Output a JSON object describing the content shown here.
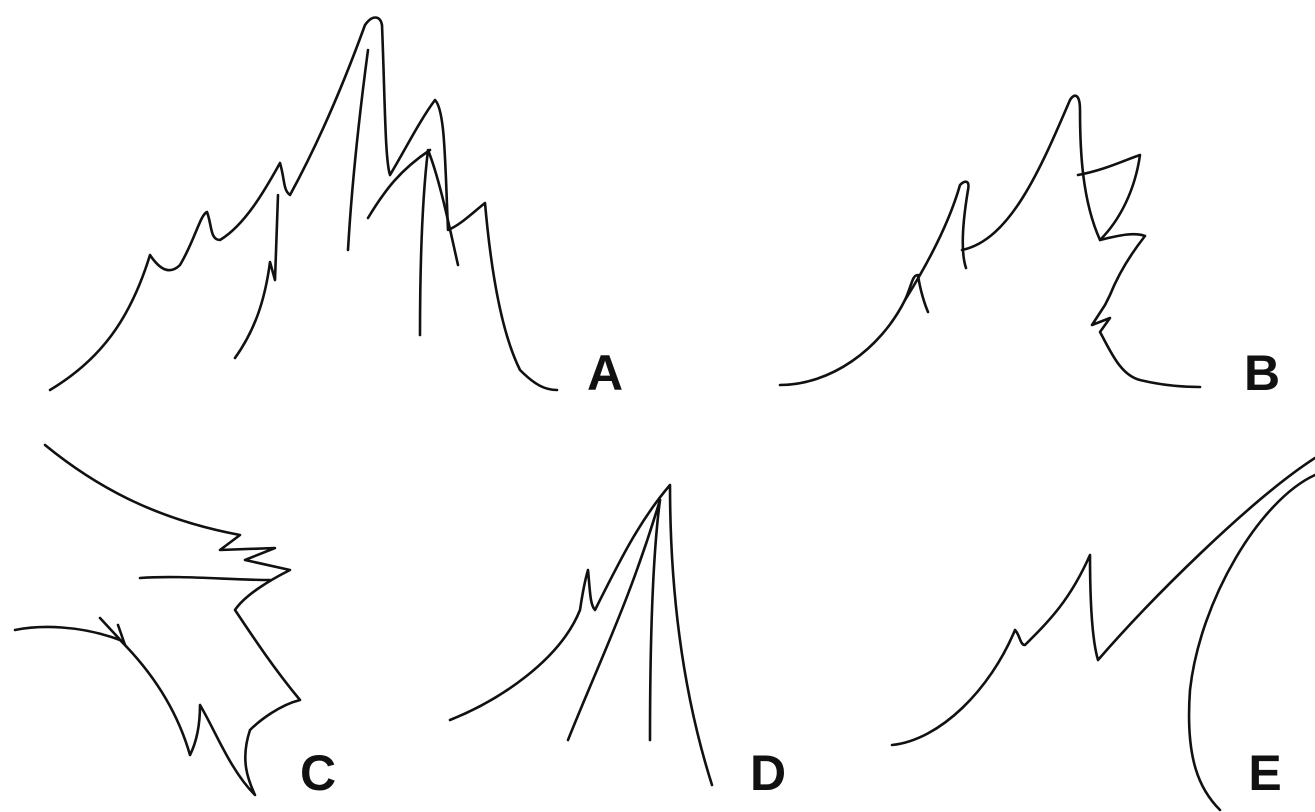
{
  "labels": [
    "A",
    "B",
    "C",
    "D",
    "E"
  ]
}
